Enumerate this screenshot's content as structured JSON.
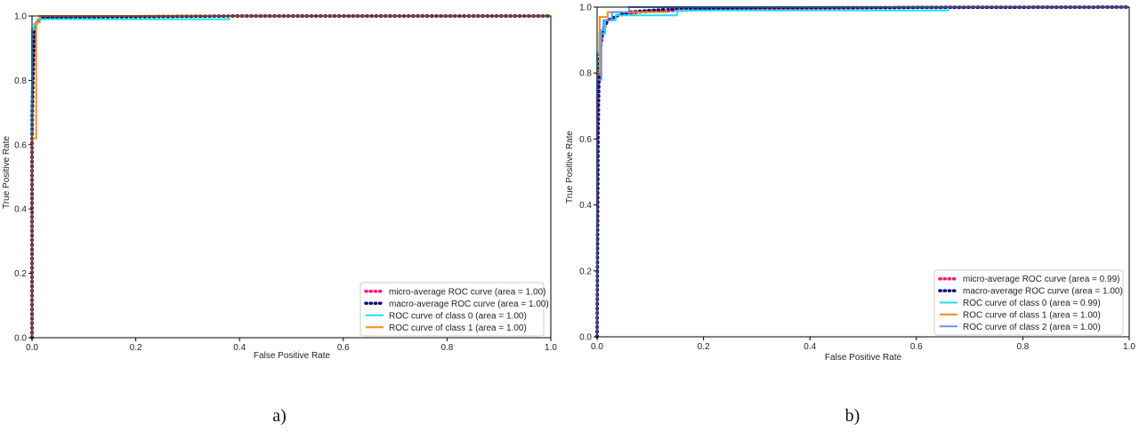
{
  "chart_data": [
    {
      "type": "line",
      "caption": "a)",
      "xlabel": "False Positive Rate",
      "ylabel": "True Positive Rate",
      "xlim": [
        0,
        1
      ],
      "ylim": [
        0,
        1
      ],
      "xticks": [
        "0.0",
        "0.2",
        "0.4",
        "0.6",
        "0.8",
        "1.0"
      ],
      "yticks": [
        "0.0",
        "0.2",
        "0.4",
        "0.6",
        "0.8",
        "1.0"
      ],
      "grid": false,
      "legend_position": "lower-right",
      "series": [
        {
          "name": "micro-average ROC curve (area = 1.00)",
          "style": "dotted",
          "color": "#ff1a75",
          "x": [
            0,
            0,
            0.002,
            0.005,
            0.01,
            0.02,
            0.05,
            0.2,
            0.4,
            0.6,
            1.0
          ],
          "y": [
            0,
            0.6,
            0.8,
            0.95,
            0.985,
            0.995,
            0.997,
            0.998,
            1.0,
            1.0,
            1.0
          ]
        },
        {
          "name": "macro-average ROC curve (area = 1.00)",
          "style": "dotted",
          "color": "#0a0a80",
          "x": [
            0,
            0,
            0.002,
            0.005,
            0.01,
            0.02,
            0.05,
            0.2,
            0.4,
            0.6,
            1.0
          ],
          "y": [
            0,
            0.7,
            0.85,
            0.96,
            0.985,
            0.994,
            0.996,
            0.998,
            1.0,
            1.0,
            1.0
          ]
        },
        {
          "name": "ROC curve of class 0 (area = 1.00)",
          "style": "solid",
          "color": "#19e3f2",
          "x": [
            0,
            0,
            0.004,
            0.004,
            0.01,
            0.01,
            0.38,
            0.38,
            1.0
          ],
          "y": [
            0,
            0.96,
            0.96,
            0.975,
            0.975,
            0.99,
            0.99,
            1.0,
            1.0
          ]
        },
        {
          "name": "ROC curve of class 1 (area = 1.00)",
          "style": "solid",
          "color": "#ff8c1a",
          "x": [
            0,
            0,
            0.008,
            0.008,
            0.015,
            0.015,
            1.0
          ],
          "y": [
            0,
            0.62,
            0.62,
            0.98,
            0.98,
            1.0,
            1.0
          ]
        }
      ]
    },
    {
      "type": "line",
      "caption": "b)",
      "xlabel": "False Positive Rate",
      "ylabel": "True Positive Rate",
      "xlim": [
        0,
        1
      ],
      "ylim": [
        0,
        1
      ],
      "xticks": [
        "0.0",
        "0.2",
        "0.4",
        "0.6",
        "0.8",
        "1.0"
      ],
      "yticks": [
        "0.0",
        "0.2",
        "0.4",
        "0.6",
        "0.8",
        "1.0"
      ],
      "grid": false,
      "legend_position": "lower-right",
      "series": [
        {
          "name": "micro-average ROC curve (area = 0.99)",
          "style": "dotted",
          "color": "#ff1a75",
          "x": [
            0,
            0.002,
            0.004,
            0.007,
            0.012,
            0.02,
            0.04,
            0.08,
            0.15,
            0.3,
            0.66,
            1.0
          ],
          "y": [
            0,
            0.6,
            0.8,
            0.88,
            0.93,
            0.96,
            0.975,
            0.985,
            0.99,
            0.995,
            1.0,
            1.0
          ]
        },
        {
          "name": "macro-average ROC curve (area = 1.00)",
          "style": "dotted",
          "color": "#0a0a80",
          "x": [
            0,
            0.002,
            0.005,
            0.01,
            0.02,
            0.04,
            0.06,
            0.1,
            0.15,
            0.3,
            1.0
          ],
          "y": [
            0,
            0.7,
            0.86,
            0.93,
            0.96,
            0.975,
            0.985,
            0.99,
            0.995,
            0.998,
            1.0
          ]
        },
        {
          "name": "ROC curve of class 0 (area = 0.99)",
          "style": "solid",
          "color": "#19e3f2",
          "x": [
            0,
            0,
            0.004,
            0.004,
            0.015,
            0.015,
            0.035,
            0.035,
            0.15,
            0.15,
            0.66,
            0.66,
            1.0
          ],
          "y": [
            0,
            0.86,
            0.86,
            0.92,
            0.92,
            0.96,
            0.96,
            0.975,
            0.975,
            0.99,
            0.99,
            1.0,
            1.0
          ]
        },
        {
          "name": "ROC curve of class 1 (area = 1.00)",
          "style": "solid",
          "color": "#ff8c1a",
          "x": [
            0,
            0,
            0.005,
            0.005,
            0.02,
            0.02,
            0.13,
            0.13,
            1.0
          ],
          "y": [
            0,
            0.8,
            0.8,
            0.97,
            0.97,
            0.985,
            0.985,
            1.0,
            1.0
          ]
        },
        {
          "name": "ROC curve of class 2 (area = 1.00)",
          "style": "solid",
          "color": "#6495ed",
          "x": [
            0,
            0,
            0.008,
            0.008,
            0.012,
            0.012,
            0.028,
            0.028,
            0.06,
            0.06,
            1.0
          ],
          "y": [
            0,
            0.78,
            0.78,
            0.93,
            0.93,
            0.96,
            0.96,
            0.985,
            0.985,
            1.0,
            1.0
          ]
        }
      ]
    }
  ]
}
